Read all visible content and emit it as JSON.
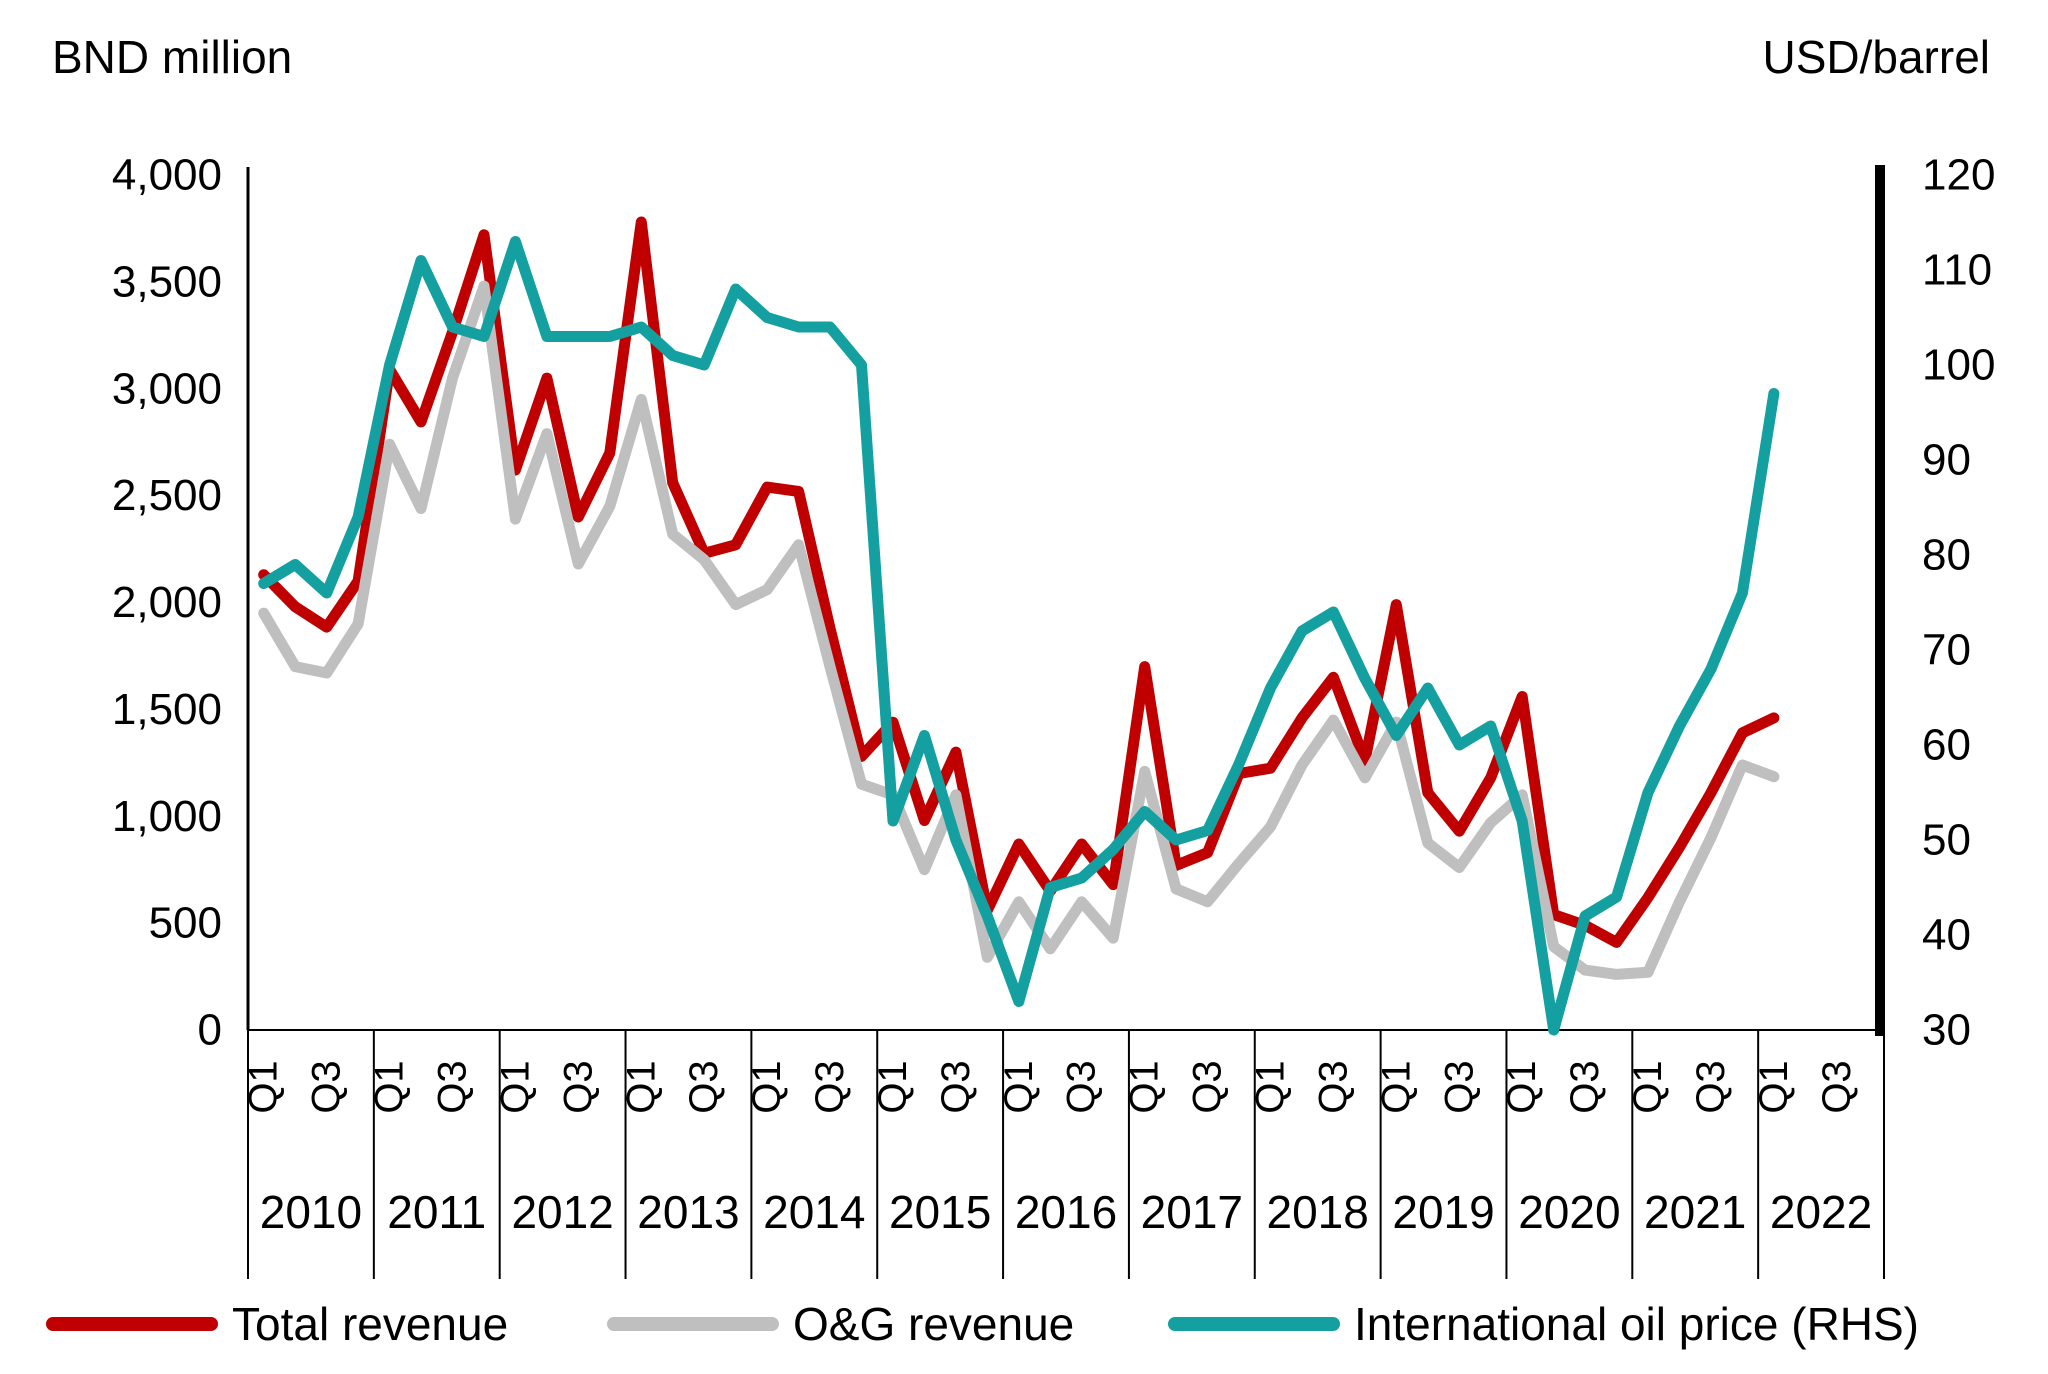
{
  "header": {
    "left_axis_title": "BND million",
    "right_axis_title": "USD/barrel"
  },
  "chart_data": {
    "type": "line",
    "title": "",
    "x_years": [
      "2010",
      "2011",
      "2012",
      "2013",
      "2014",
      "2015",
      "2016",
      "2017",
      "2018",
      "2019",
      "2020",
      "2021",
      "2022"
    ],
    "quarters_per_year": 4,
    "quarter_tick_labels": [
      "Q1",
      "Q3"
    ],
    "grid": false,
    "legend_position": "bottom",
    "left_axis": {
      "min": 0,
      "max": 4000,
      "step": 500,
      "tick_labels": [
        "4,000",
        "3,500",
        "3,000",
        "2,500",
        "2,000",
        "1,500",
        "1,000",
        "500",
        "0"
      ]
    },
    "right_axis": {
      "min": 30,
      "max": 120,
      "step": 10,
      "tick_labels": [
        "120",
        "110",
        "100",
        "90",
        "80",
        "70",
        "60",
        "50",
        "40",
        "30"
      ]
    },
    "series": [
      {
        "name": "Total revenue",
        "axis": "left",
        "color": "#c00000",
        "values": [
          2130,
          1980,
          1885,
          2100,
          3090,
          2845,
          3265,
          3720,
          2620,
          3050,
          2400,
          2700,
          3780,
          2560,
          2230,
          2270,
          2540,
          2520,
          1880,
          1280,
          1440,
          980,
          1300,
          560,
          870,
          650,
          870,
          680,
          1700,
          770,
          830,
          1200,
          1225,
          1460,
          1650,
          1260,
          1990,
          1110,
          930,
          1180,
          1560,
          540,
          490,
          410,
          620,
          855,
          1110,
          1390,
          1460
        ]
      },
      {
        "name": "O&G revenue",
        "axis": "left",
        "color": "#bfbfbf",
        "values": [
          1950,
          1700,
          1670,
          1900,
          2740,
          2440,
          3050,
          3480,
          2390,
          2790,
          2180,
          2450,
          2950,
          2320,
          2200,
          1990,
          2060,
          2270,
          1700,
          1150,
          1100,
          750,
          1100,
          340,
          600,
          380,
          600,
          430,
          1210,
          660,
          600,
          780,
          950,
          1240,
          1450,
          1180,
          1440,
          875,
          760,
          970,
          1100,
          390,
          280,
          260,
          270,
          600,
          900,
          1240,
          1185
        ]
      },
      {
        "name": "International oil price (RHS)",
        "axis": "right",
        "color": "#14a0a0",
        "values": [
          77,
          79,
          76,
          84,
          100,
          111,
          104,
          103,
          113,
          103,
          103,
          103,
          104,
          101,
          100,
          108,
          105,
          104,
          104,
          100,
          52,
          61,
          50,
          42,
          33,
          45,
          46,
          49,
          53,
          50,
          51,
          58,
          66,
          72,
          74,
          67,
          61,
          66,
          60,
          62,
          52,
          30,
          42,
          44,
          55,
          62,
          68,
          76,
          97
        ]
      }
    ]
  }
}
